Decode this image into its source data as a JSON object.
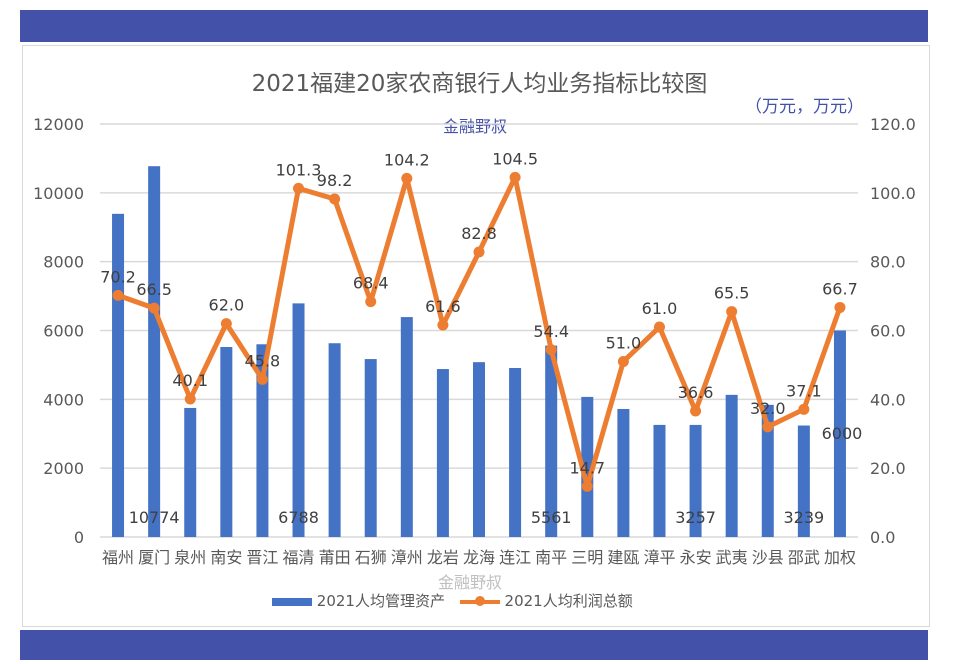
{
  "title": "2021福建20家农商银行人均业务指标比较图",
  "subtitle": "金融野叔",
  "units": "（万元，万元）",
  "watermark": "金融野叔",
  "colors": {
    "bar": "#4472C4",
    "line": "#ED7D31",
    "band": "#4451A8",
    "accent_text": "#4451A8"
  },
  "chart_data": {
    "type": "bar+line",
    "title": "2021福建20家农商银行人均业务指标比较图",
    "categories": [
      "福州",
      "厦门",
      "泉州",
      "南安",
      "晋江",
      "福清",
      "莆田",
      "石狮",
      "漳州",
      "龙岩",
      "龙海",
      "连江",
      "南平",
      "三明",
      "建瓯",
      "漳平",
      "永安",
      "武夷",
      "沙县",
      "邵武",
      "加权"
    ],
    "series": [
      {
        "name": "2021人均管理资产",
        "type": "bar",
        "axis": "left",
        "values": [
          9390,
          10774,
          3750,
          5520,
          5600,
          6788,
          5630,
          5170,
          6390,
          4880,
          5080,
          4910,
          5561,
          4070,
          3720,
          3257,
          3257,
          4130,
          3840,
          3239,
          6000
        ],
        "labels": [
          null,
          "10774",
          null,
          null,
          null,
          "6788",
          null,
          null,
          null,
          null,
          null,
          null,
          "5561",
          null,
          null,
          null,
          "3257",
          null,
          null,
          "3239",
          "6000"
        ]
      },
      {
        "name": "2021人均利润总额",
        "type": "line",
        "axis": "right",
        "values": [
          70.2,
          66.5,
          40.1,
          62.0,
          45.8,
          101.3,
          98.2,
          68.4,
          104.2,
          61.6,
          82.8,
          104.5,
          54.4,
          14.7,
          51.0,
          61.0,
          36.6,
          65.5,
          32.0,
          37.1,
          66.7
        ],
        "labels": [
          "70.2",
          "66.5",
          "40.1",
          "62.0",
          "45.8",
          "101.3",
          "98.2",
          "68.4",
          "104.2",
          "61.6",
          "82.8",
          "104.5",
          "54.4",
          "14.7",
          "51.0",
          "61.0",
          "36.6",
          "65.5",
          "32.0",
          "37.1",
          "66.7"
        ]
      }
    ],
    "left_axis": {
      "range": [
        0,
        12000
      ],
      "ticks": [
        "0",
        "2000",
        "4000",
        "6000",
        "8000",
        "10000",
        "12000"
      ]
    },
    "right_axis": {
      "range": [
        0,
        120
      ],
      "ticks": [
        "0.0",
        "20.0",
        "40.0",
        "60.0",
        "80.0",
        "100.0",
        "120.0"
      ]
    },
    "grid": true,
    "legend": "bottom"
  }
}
